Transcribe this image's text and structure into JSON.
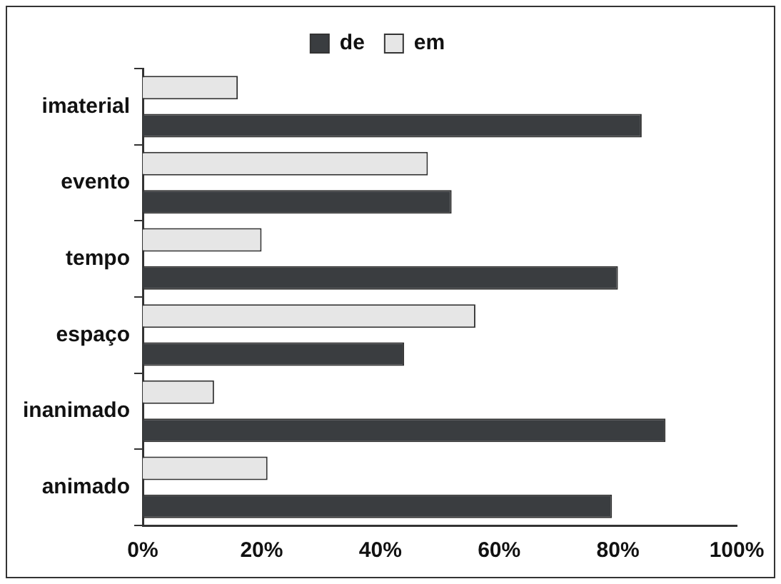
{
  "chart_data": {
    "type": "bar",
    "orientation": "horizontal",
    "categories": [
      "imaterial",
      "evento",
      "tempo",
      "espaço",
      "inanimado",
      "animado"
    ],
    "series": [
      {
        "name": "de",
        "color": "#3a3d40",
        "values": [
          84,
          52,
          80,
          44,
          88,
          79
        ]
      },
      {
        "name": "em",
        "color": "#e6e6e6",
        "values": [
          16,
          48,
          20,
          56,
          12,
          21
        ]
      }
    ],
    "xlim": [
      0,
      100
    ],
    "xticks": [
      {
        "value": 0,
        "label": "0%"
      },
      {
        "value": 20,
        "label": "20%"
      },
      {
        "value": 40,
        "label": "40%"
      },
      {
        "value": 60,
        "label": "60%"
      },
      {
        "value": 80,
        "label": "80%"
      },
      {
        "value": 100,
        "label": "100%"
      }
    ],
    "grid": false,
    "legend": "top"
  }
}
